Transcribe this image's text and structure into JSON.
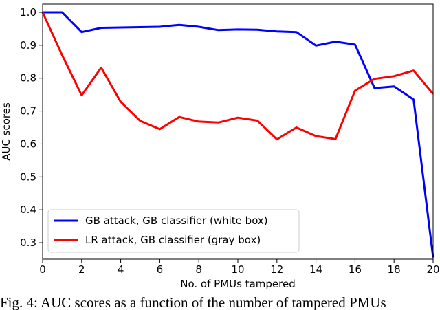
{
  "chart_data": {
    "type": "line",
    "xlabel": "No. of PMUs tampered",
    "ylabel": "AUC scores",
    "xlim": [
      0,
      20
    ],
    "ylim": [
      0.25,
      1.025
    ],
    "xticks": [
      0,
      2,
      4,
      6,
      8,
      10,
      12,
      14,
      16,
      18,
      20
    ],
    "yticks": [
      0.3,
      0.4,
      0.5,
      0.6,
      0.7,
      0.8,
      0.9,
      1.0
    ],
    "ytick_labels": [
      "0.3",
      "0.4",
      "0.5",
      "0.6",
      "0.7",
      "0.8",
      "0.9",
      "1.0"
    ],
    "legend_position": "lower-left",
    "grid": false,
    "x": [
      0,
      1,
      2,
      3,
      4,
      5,
      6,
      7,
      8,
      9,
      10,
      11,
      12,
      13,
      14,
      15,
      16,
      17,
      18,
      19,
      20
    ],
    "series": [
      {
        "name": "GB attack, GB classifier (white box)",
        "color": "#0000ff",
        "values": [
          1.0,
          1.0,
          0.94,
          0.953,
          0.954,
          0.955,
          0.956,
          0.962,
          0.956,
          0.946,
          0.948,
          0.947,
          0.942,
          0.94,
          0.899,
          0.911,
          0.902,
          0.77,
          0.775,
          0.735,
          0.255
        ]
      },
      {
        "name": "LR attack, GB classifier (gray box)",
        "color": "#ff0000",
        "values": [
          1.0,
          0.87,
          0.748,
          0.832,
          0.728,
          0.67,
          0.645,
          0.682,
          0.668,
          0.665,
          0.68,
          0.671,
          0.614,
          0.65,
          0.624,
          0.615,
          0.762,
          0.798,
          0.806,
          0.823,
          0.752
        ]
      }
    ]
  },
  "caption": "Fig. 4: AUC scores as a function of the number of tampered PMUs"
}
